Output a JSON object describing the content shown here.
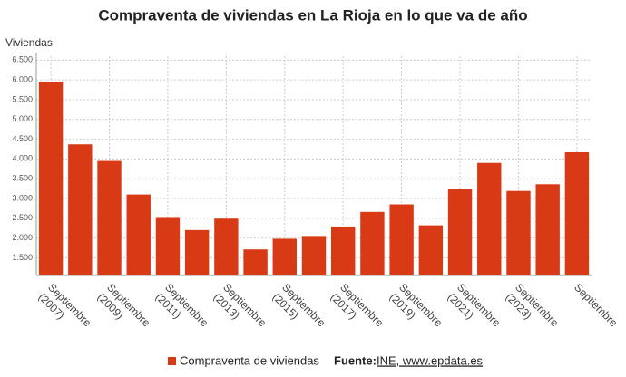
{
  "chart_data": {
    "type": "bar",
    "title": "Compraventa de viviendas en La Rioja en lo que va de año",
    "y_axis_label": "Viviendas",
    "categories": [
      "Septiembre (2007)",
      null,
      "Septiembre (2009)",
      null,
      "Septiembre (2011)",
      null,
      "Septiembre (2013)",
      null,
      "Septiembre (2015)",
      null,
      "Septiembre (2017)",
      null,
      "Septiembre (2019)",
      null,
      "Septiembre (2021)",
      null,
      "Septiembre (2023)",
      null,
      "Septiembre"
    ],
    "series": [
      {
        "name": "Compraventa de viviendas",
        "color": "#d93a16",
        "values": [
          5950,
          4370,
          3950,
          3100,
          2530,
          2200,
          2490,
          1710,
          1980,
          2050,
          2290,
          2660,
          2850,
          2320,
          3250,
          3900,
          3190,
          3360,
          4170
        ]
      }
    ],
    "ylim": [
      1050,
      6600
    ],
    "yticks": [
      {
        "value": 1500,
        "label": "1.500"
      },
      {
        "value": 2000,
        "label": "2.000"
      },
      {
        "value": 2500,
        "label": "2.500"
      },
      {
        "value": 3000,
        "label": "3.000"
      },
      {
        "value": 3500,
        "label": "3.500"
      },
      {
        "value": 4000,
        "label": "4.000"
      },
      {
        "value": 4500,
        "label": "4.500"
      },
      {
        "value": 5000,
        "label": "5.000"
      },
      {
        "value": 5500,
        "label": "5.500"
      },
      {
        "value": 6000,
        "label": "6.000"
      },
      {
        "value": 6500,
        "label": "6.500"
      }
    ],
    "grid": true,
    "source_label": "Fuente:",
    "source": "INE, www.epdata.es"
  }
}
